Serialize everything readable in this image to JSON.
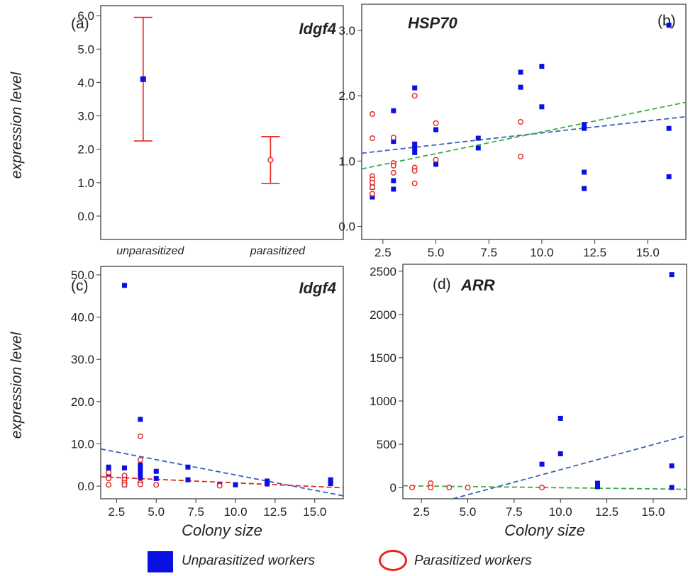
{
  "colors": {
    "unparasitized": "#0a10e0",
    "parasitized": "#e8261c",
    "trend_blue": "#3b5fbf",
    "trend_green": "#3aae4a",
    "trend_red": "#e8261c",
    "axis": "#333333"
  },
  "legend": {
    "unparasitized_label": "Unparasitized workers",
    "parasitized_label": "Parasitized workers"
  },
  "chart_data": [
    {
      "panel": "(a)",
      "gene": "Idgf4",
      "type": "scatter",
      "ylabel": "expression level",
      "xlabel": "",
      "categories": [
        "unparasitized",
        "parasitized"
      ],
      "ylim": [
        -0.7,
        6.3
      ],
      "yticks": [
        "0.0",
        "1.0",
        "2.0",
        "3.0",
        "4.0",
        "5.0",
        "6.0"
      ],
      "series": [
        {
          "name": "Unparasitized workers",
          "marker": "square",
          "category": "unparasitized",
          "mean": 4.1,
          "lower": 2.25,
          "upper": 5.95
        },
        {
          "name": "Parasitized workers",
          "marker": "circle",
          "category": "parasitized",
          "mean": 1.68,
          "lower": 0.98,
          "upper": 2.38
        }
      ]
    },
    {
      "panel": "(b)",
      "gene": "HSP70",
      "type": "scatter",
      "xlabel": "",
      "ylabel": "",
      "xlim": [
        1.5,
        16.8
      ],
      "ylim": [
        -0.2,
        3.4
      ],
      "xticks": [
        "2.5",
        "5.0",
        "7.5",
        "10.0",
        "12.5",
        "15.0"
      ],
      "yticks": [
        "0.0",
        "1.0",
        "2.0",
        "3.0"
      ],
      "series": [
        {
          "name": "Unparasitized workers",
          "marker": "square",
          "x": [
            2,
            2,
            3,
            3,
            3,
            3,
            4,
            4,
            4,
            4,
            5,
            5,
            7,
            7,
            9,
            9,
            10,
            10,
            12,
            12,
            12,
            12,
            16,
            16,
            16
          ],
          "y": [
            0.45,
            0.6,
            1.77,
            1.3,
            0.7,
            0.57,
            2.12,
            1.26,
            1.2,
            1.13,
            1.48,
            0.95,
            1.35,
            1.2,
            2.36,
            2.13,
            2.45,
            1.83,
            1.56,
            1.5,
            0.83,
            0.58,
            3.08,
            1.5,
            0.76
          ]
        },
        {
          "name": "Parasitized workers",
          "marker": "circle",
          "x": [
            2,
            2,
            2,
            2,
            2,
            2,
            2,
            3,
            3,
            3,
            3,
            4,
            4,
            4,
            4,
            5,
            5,
            9,
            9
          ],
          "y": [
            1.72,
            1.35,
            0.77,
            0.72,
            0.67,
            0.6,
            0.5,
            1.36,
            0.97,
            0.93,
            0.82,
            2.0,
            0.9,
            0.85,
            0.66,
            1.58,
            1.02,
            1.6,
            1.07
          ]
        }
      ],
      "trendlines": [
        {
          "color": "blue",
          "x": [
            1.5,
            16.8
          ],
          "y": [
            1.12,
            1.68
          ]
        },
        {
          "color": "green",
          "x": [
            1.5,
            16.8
          ],
          "y": [
            0.88,
            1.9
          ]
        }
      ]
    },
    {
      "panel": "(c)",
      "gene": "Idgf4",
      "type": "scatter",
      "xlabel": "Colony size",
      "ylabel": "expression level",
      "xlim": [
        1.5,
        16.8
      ],
      "ylim": [
        -3,
        52
      ],
      "xticks": [
        "2.5",
        "5.0",
        "7.5",
        "10.0",
        "12.5",
        "15.0"
      ],
      "yticks": [
        "0.0",
        "10.0",
        "20.0",
        "30.0",
        "40.0",
        "50.0"
      ],
      "series": [
        {
          "name": "Unparasitized workers",
          "marker": "square",
          "x": [
            2,
            2,
            2,
            3,
            3,
            3,
            3,
            3,
            4,
            4,
            4,
            4,
            4,
            5,
            5,
            7,
            7,
            9,
            10,
            12,
            12,
            16,
            16,
            16
          ],
          "y": [
            4.5,
            3.8,
            2.5,
            47.5,
            4.3,
            2.3,
            1.0,
            0.3,
            15.8,
            5.0,
            4.0,
            3.0,
            2.0,
            3.5,
            1.8,
            4.5,
            1.5,
            0.3,
            0.3,
            1.2,
            0.5,
            1.5,
            1.0,
            0.6
          ]
        },
        {
          "name": "Parasitized workers",
          "marker": "circle",
          "x": [
            2,
            2,
            2,
            3,
            3,
            3,
            3,
            4,
            4,
            4,
            4,
            5,
            9
          ],
          "y": [
            3.2,
            1.8,
            0.3,
            2.5,
            1.5,
            0.8,
            0.3,
            11.8,
            6.2,
            0.8,
            0.4,
            0.3,
            0.1
          ]
        }
      ],
      "trendlines": [
        {
          "color": "blue",
          "x": [
            1.5,
            16.8
          ],
          "y": [
            8.8,
            -2.3
          ]
        },
        {
          "color": "red",
          "x": [
            1.5,
            16.8
          ],
          "y": [
            2.2,
            -0.4
          ]
        }
      ]
    },
    {
      "panel": "(d)",
      "gene": "ARR",
      "type": "scatter",
      "xlabel": "Colony size",
      "ylabel": "",
      "xlim": [
        1.5,
        16.8
      ],
      "ylim": [
        -130,
        2580
      ],
      "xticks": [
        "2.5",
        "5.0",
        "7.5",
        "10.0",
        "12.5",
        "15.0"
      ],
      "yticks": [
        "0",
        "500",
        "1000",
        "1500",
        "2000",
        "2500"
      ],
      "series": [
        {
          "name": "Unparasitized workers",
          "marker": "square",
          "x": [
            9,
            10,
            10,
            12,
            12,
            16,
            16,
            16
          ],
          "y": [
            270,
            800,
            390,
            50,
            10,
            2460,
            250,
            0
          ]
        },
        {
          "name": "Parasitized workers",
          "marker": "circle",
          "x": [
            2,
            3,
            3,
            4,
            5,
            9
          ],
          "y": [
            0,
            50,
            0,
            0,
            0,
            0
          ]
        }
      ],
      "trendlines": [
        {
          "color": "blue",
          "x": [
            4.2,
            16.8
          ],
          "y": [
            -130,
            600
          ]
        },
        {
          "color": "green",
          "x": [
            1.5,
            16.8
          ],
          "y": [
            20,
            -20
          ]
        }
      ]
    }
  ]
}
